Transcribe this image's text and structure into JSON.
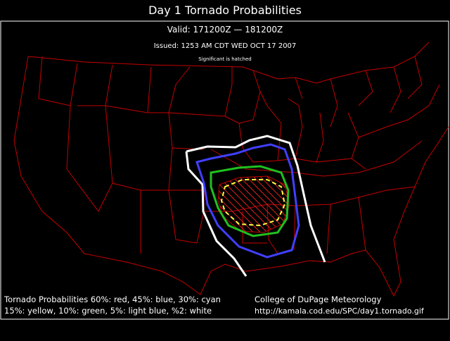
{
  "header": {
    "title": "Day 1 Tornado Probabilities",
    "valid": "Valid: 171200Z — 181200Z",
    "issued": "Issued: 1253 AM CDT WED OCT 17 2007",
    "note": "Significant is hatched"
  },
  "legend": {
    "lines": [
      "Tornado Probabilities 60%: red, 45%: blue, 30%: cyan",
      "15%: yellow, 10%: green, 5%: light blue, %2: white"
    ]
  },
  "credit": {
    "lines": [
      "College of DuPage Meteorology",
      "http://kamala.cod.edu/SPC/day1.tornado.gif"
    ]
  }
}
